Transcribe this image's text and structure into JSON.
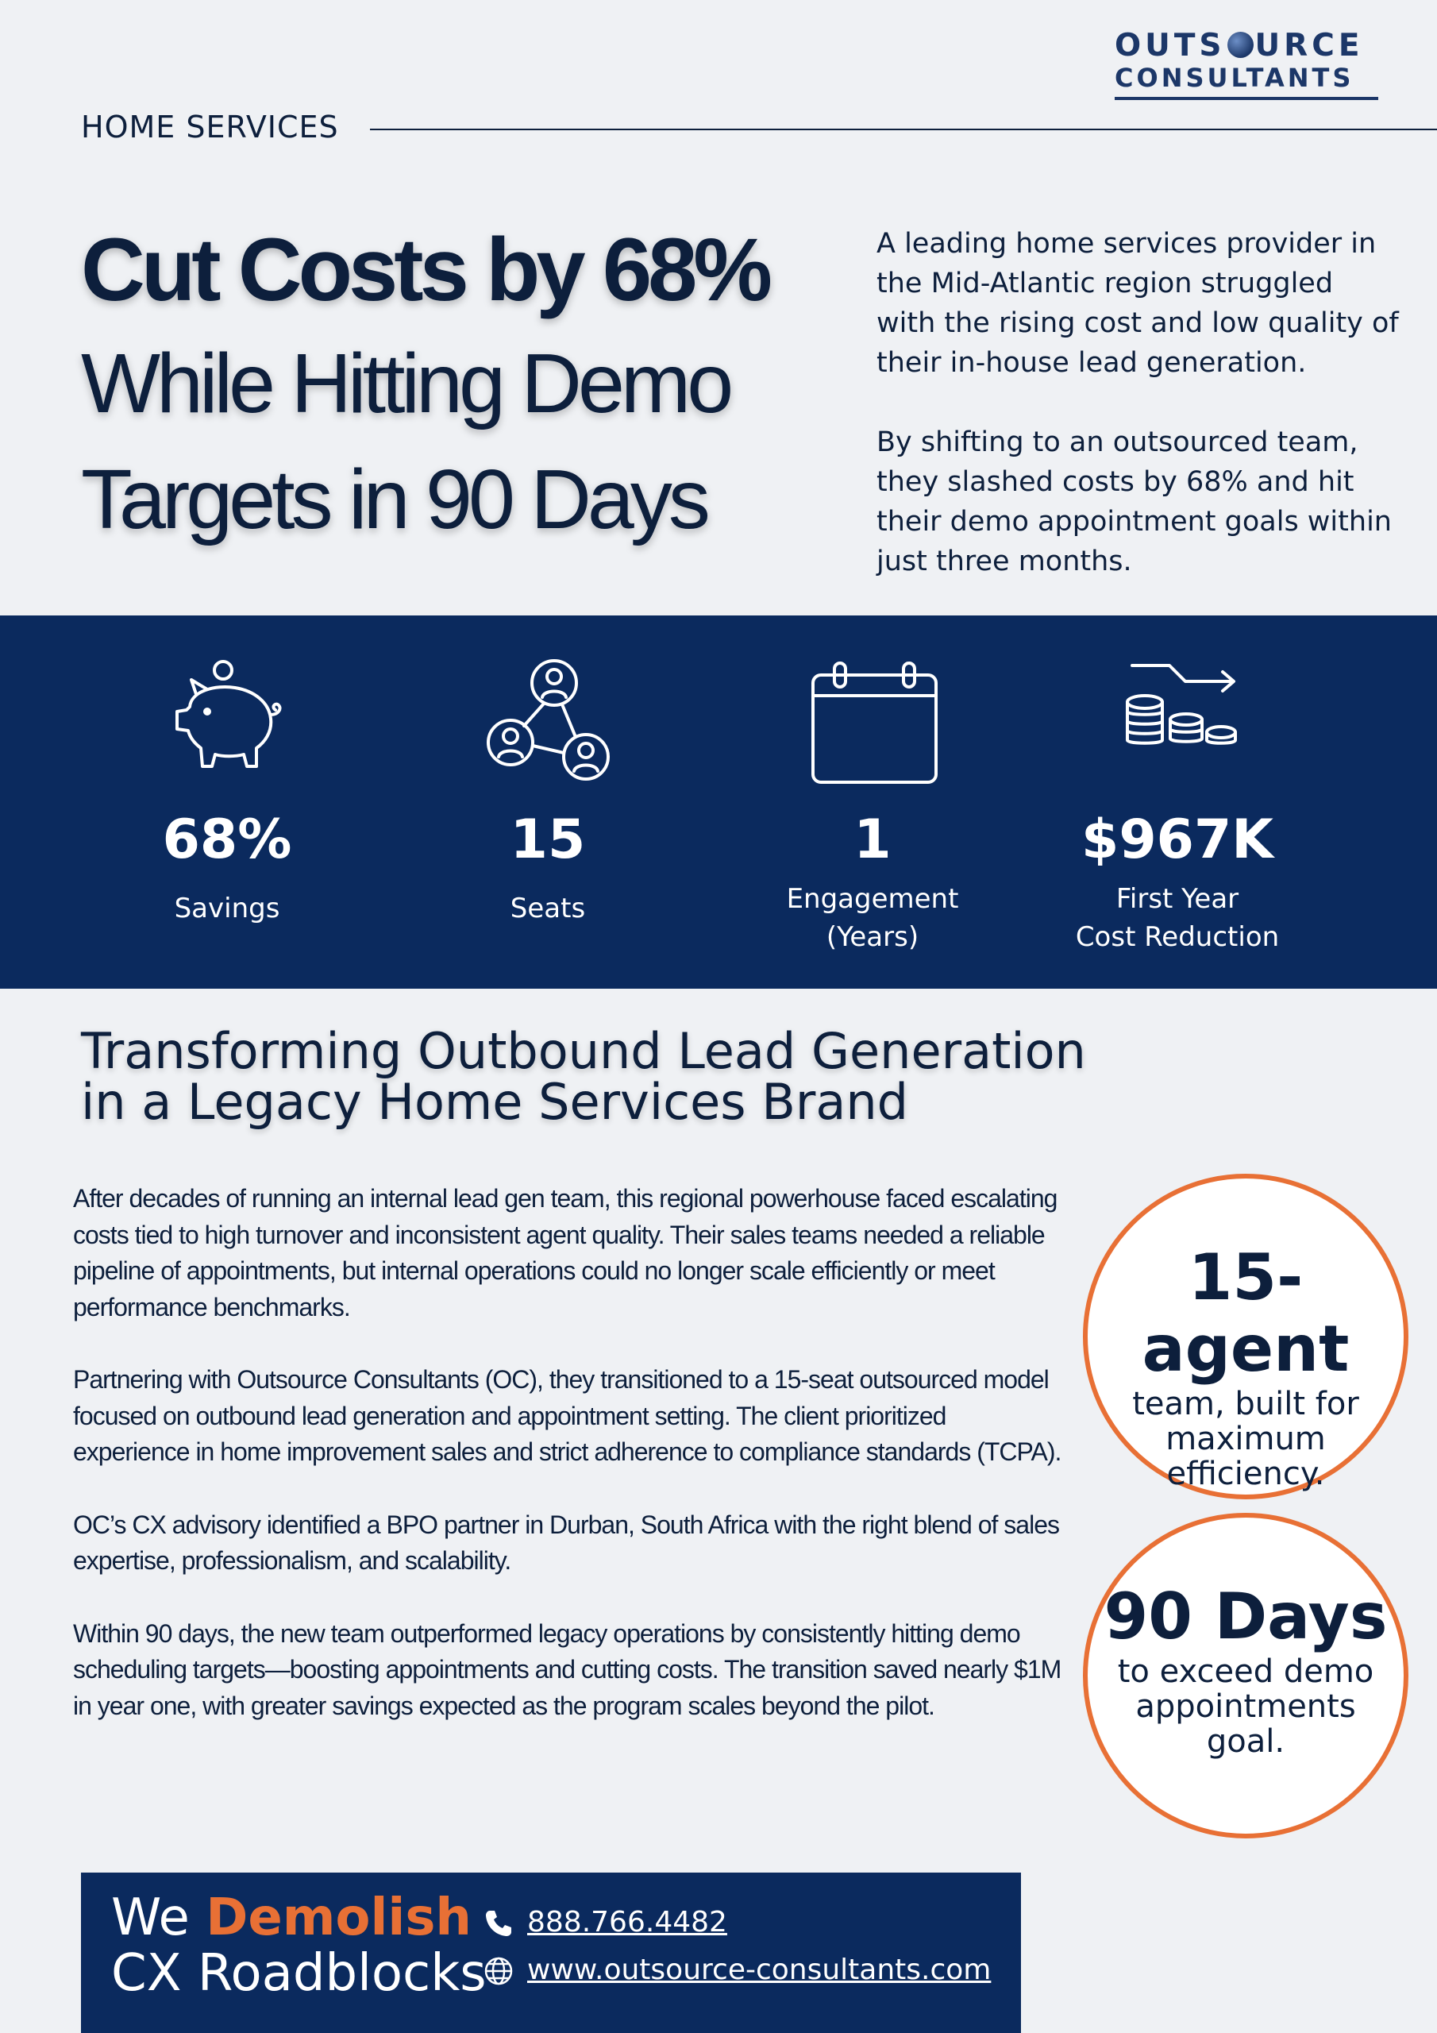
{
  "brand": {
    "logo_line1_a": "OUTS",
    "logo_line1_b": "URCE",
    "logo_line2": "CONSULTANTS"
  },
  "section_tag": "HOME SERVICES",
  "headline": {
    "line1": "Cut Costs by 68%",
    "line2": "While Hitting Demo",
    "line3": "Targets in 90 Days"
  },
  "intro": {
    "p1": "A leading home services provider in the Mid-Atlantic region struggled with the rising cost and low quality of their in-house lead generation.",
    "p2": "By shifting to an outsourced team, they slashed costs by 68% and hit their demo appointment goals within just three months."
  },
  "stats": [
    {
      "icon": "piggy-bank-icon",
      "value": "68%",
      "label_line1": "Savings",
      "label_line2": ""
    },
    {
      "icon": "team-network-icon",
      "value": "15",
      "label_line1": "Seats",
      "label_line2": ""
    },
    {
      "icon": "calendar-icon",
      "value": "1",
      "label_line1": "Engagement",
      "label_line2": "(Years)"
    },
    {
      "icon": "coins-decrease-icon",
      "value": "$967K",
      "label_line1": "First Year",
      "label_line2": "Cost Reduction"
    }
  ],
  "section_title": {
    "line1": "Transforming Outbound Lead Generation",
    "line2": "in a Legacy Home Services Brand"
  },
  "body": {
    "p1": "After decades of running an internal lead gen team, this regional powerhouse faced escalating costs tied to high turnover and inconsistent agent quality. Their sales teams needed a reliable pipeline of appointments, but internal operations could no longer scale efficiently or meet performance benchmarks.",
    "p2": "Partnering with Outsource Consultants (OC), they transitioned to a 15-seat outsourced model focused on outbound lead generation and appointment setting. The client prioritized experience in home improvement sales and strict adherence to compliance standards (TCPA).",
    "p3": "OC’s CX advisory identified a BPO partner in Durban, South Africa with the right blend of sales expertise, professionalism, and scalability.",
    "p4": "Within 90 days, the new team outperformed legacy operations by consistently hitting demo scheduling targets—boosting appointments and cutting costs. The transition saved nearly $1M in year one, with greater savings expected as the program scales beyond the pilot."
  },
  "callouts": [
    {
      "big": "15-agent",
      "small_line1": "team, built for",
      "small_line2": "maximum",
      "small_line3": "efficiency."
    },
    {
      "big": "90 Days",
      "small_line1": "to exceed demo",
      "small_line2": "appointments",
      "small_line3": "goal."
    }
  ],
  "footer": {
    "tagline_we": "We",
    "tagline_accent": "Demolish",
    "tagline_line2": "CX Roadblocks",
    "phone": "888.766.4482",
    "website": "www.outsource-consultants.com"
  },
  "colors": {
    "navy": "#0b2a5e",
    "text": "#0d1f3c",
    "accent_orange": "#e87035",
    "background": "#eff1f4"
  }
}
